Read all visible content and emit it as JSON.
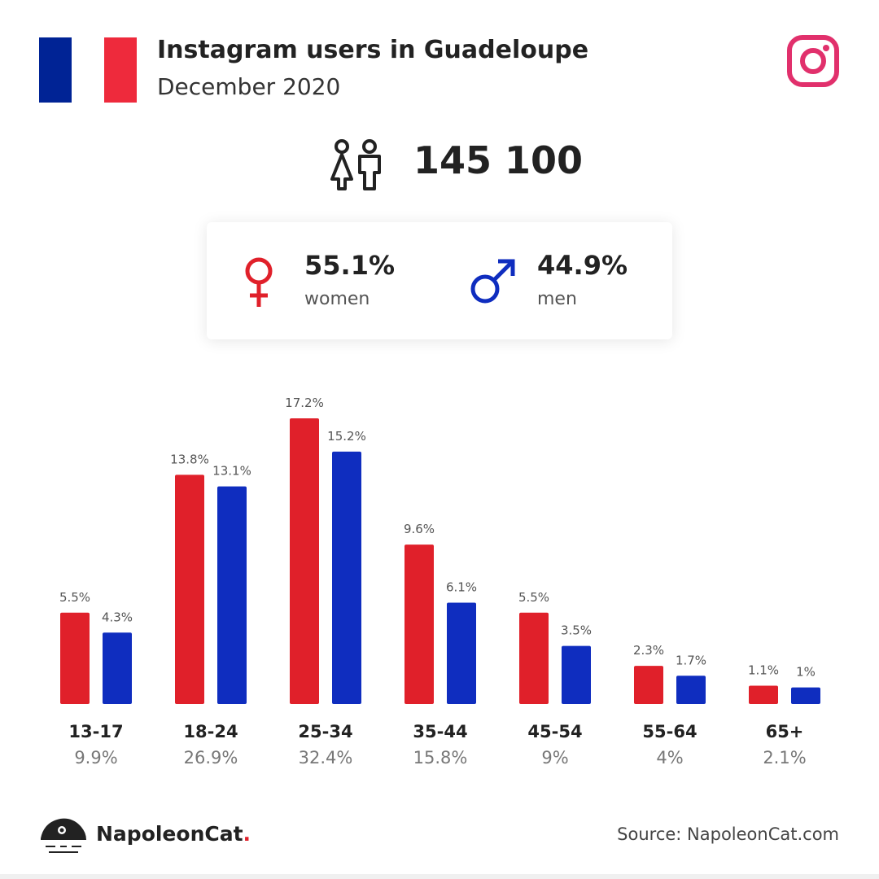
{
  "header": {
    "title": "Instagram users in Guadeloupe",
    "subtitle": "December 2020"
  },
  "flag_colors": {
    "blue": "#002395",
    "white": "#ffffff",
    "red": "#ee2a3c"
  },
  "brand_icon": "instagram-icon",
  "total": {
    "icon": "people-icon",
    "value": "145 100"
  },
  "gender": {
    "women": {
      "icon": "female-symbol-icon",
      "pct": "55.1%",
      "label": "women",
      "color": "#e0202a"
    },
    "men": {
      "icon": "male-symbol-icon",
      "pct": "44.9%",
      "label": "men",
      "color": "#0f2dbf"
    }
  },
  "chart_data": {
    "type": "bar",
    "categories": [
      "13-17",
      "18-24",
      "25-34",
      "35-44",
      "45-54",
      "55-64",
      "65+"
    ],
    "category_totals": [
      "9.9%",
      "26.9%",
      "32.4%",
      "15.8%",
      "9%",
      "4%",
      "2.1%"
    ],
    "series": [
      {
        "name": "women",
        "color": "#e0202a",
        "values": [
          5.5,
          13.8,
          17.2,
          9.6,
          5.5,
          2.3,
          1.1
        ],
        "labels": [
          "5.5%",
          "13.8%",
          "17.2%",
          "9.6%",
          "5.5%",
          "2.3%",
          "1.1%"
        ]
      },
      {
        "name": "men",
        "color": "#0f2dbf",
        "values": [
          4.3,
          13.1,
          15.2,
          6.1,
          3.5,
          1.7,
          1.0
        ],
        "labels": [
          "4.3%",
          "13.1%",
          "15.2%",
          "6.1%",
          "3.5%",
          "1.7%",
          "1%"
        ]
      }
    ],
    "ylim": [
      0,
      17.2
    ],
    "grid": false
  },
  "footer": {
    "logo_icon": "napoleoncat-logo-icon",
    "brand_name": "NapoleonCat",
    "brand_dot": ".",
    "source": "Source: NapoleonCat.com"
  }
}
